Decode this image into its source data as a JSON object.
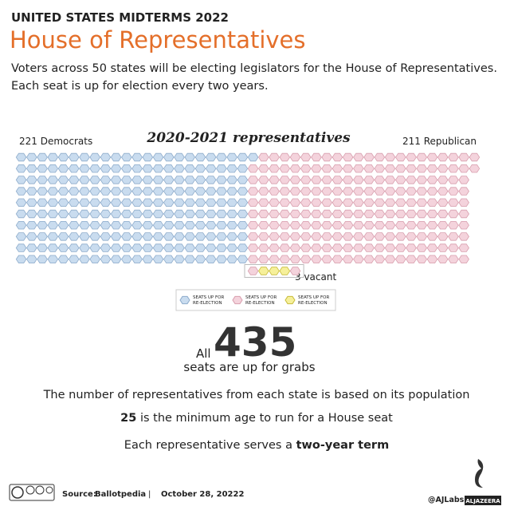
{
  "header": {
    "kicker": "UNITED STATES MIDTERMS 2022",
    "title": "House of Representatives",
    "subtitle": [
      "Voters across 50 states will be electing legislators for the House of Representatives.",
      "Each seat is up for election every two years."
    ]
  },
  "chart_data": {
    "type": "waffle",
    "title": "2020-2021 representatives",
    "series": [
      {
        "name": "221 Democrats",
        "value": 221,
        "color": "#c9dcef",
        "stroke": "#8eaccb"
      },
      {
        "name": "211 Republican",
        "value": 211,
        "color": "#f4d3dc",
        "stroke": "#d89fae"
      },
      {
        "name": "3 vacant",
        "value": 3,
        "color": "#f6f09a",
        "stroke": "#c8bc3c"
      }
    ],
    "legend": [
      {
        "lines": [
          "SEATS UP FOR",
          "RE-ELECTION"
        ],
        "color": "#c9dcef",
        "stroke": "#8eaccb"
      },
      {
        "lines": [
          "SEATS UP FOR",
          "RE-ELECTION"
        ],
        "color": "#f4d3dc",
        "stroke": "#d89fae"
      },
      {
        "lines": [
          "SEATS UP FOR",
          "RE-ELECTION"
        ],
        "color": "#f6f09a",
        "stroke": "#c8bc3c"
      }
    ]
  },
  "stats": {
    "prefix": "All",
    "total": 435,
    "suffix": "seats are up for grabs",
    "facts": [
      "The number of representatives from each state is based on its population"
    ],
    "age": {
      "number": 25,
      "text": "is the minimum age to run for a House seat"
    },
    "term": {
      "text": "Each representative serves a",
      "bold": "two-year term"
    }
  },
  "footer": {
    "source_label": "Source:",
    "source": "Ballotpedia",
    "separator": "|",
    "date": "October 28, 20222",
    "handle": "@AJLabs",
    "brand": "ALJAZEERA"
  }
}
